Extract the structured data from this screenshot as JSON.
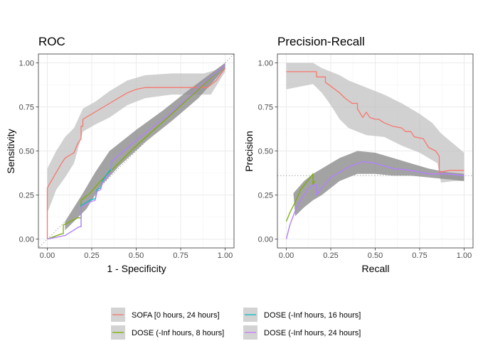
{
  "chart_data": [
    {
      "type": "line",
      "title": "ROC",
      "xlabel": "1 - Specificity",
      "ylabel": "Sensitivity",
      "xlim": [
        0,
        1
      ],
      "ylim": [
        0,
        1
      ],
      "x_ticks": [
        "0.00",
        "0.25",
        "0.50",
        "0.75",
        "1.00"
      ],
      "y_ticks": [
        "0.00",
        "0.25",
        "0.50",
        "0.75",
        "1.00"
      ],
      "grid": true,
      "reference": {
        "kind": "diagonal",
        "from": [
          0,
          0
        ],
        "to": [
          1,
          1
        ],
        "style": "dotted",
        "color": "#a6a6a6"
      },
      "bands": [
        {
          "series": "SOFA [0 hours, 24 hours]",
          "fill": "#bdbdbd",
          "opacity": 0.7,
          "upper": [
            [
              0,
              0.4
            ],
            [
              0.05,
              0.5
            ],
            [
              0.1,
              0.58
            ],
            [
              0.15,
              0.63
            ],
            [
              0.2,
              0.74
            ],
            [
              0.27,
              0.78
            ],
            [
              0.35,
              0.84
            ],
            [
              0.45,
              0.9
            ],
            [
              0.55,
              0.93
            ],
            [
              0.7,
              0.94
            ],
            [
              0.88,
              0.94
            ],
            [
              0.95,
              0.96
            ],
            [
              1.0,
              1.0
            ]
          ],
          "lower": [
            [
              1.0,
              0.95
            ],
            [
              0.92,
              0.82
            ],
            [
              0.88,
              0.82
            ],
            [
              0.7,
              0.82
            ],
            [
              0.55,
              0.8
            ],
            [
              0.45,
              0.76
            ],
            [
              0.35,
              0.69
            ],
            [
              0.27,
              0.65
            ],
            [
              0.2,
              0.61
            ],
            [
              0.15,
              0.43
            ],
            [
              0.1,
              0.35
            ],
            [
              0.05,
              0.28
            ],
            [
              0.02,
              0.2
            ],
            [
              0,
              0.15
            ]
          ]
        },
        {
          "series": "DOSE",
          "fill": "#8c8c8c",
          "opacity": 0.8,
          "upper": [
            [
              0.1,
              0.1
            ],
            [
              0.2,
              0.26
            ],
            [
              0.27,
              0.38
            ],
            [
              0.35,
              0.5
            ],
            [
              0.5,
              0.62
            ],
            [
              0.65,
              0.73
            ],
            [
              0.8,
              0.85
            ],
            [
              0.92,
              0.94
            ],
            [
              1.0,
              1.0
            ]
          ],
          "lower": [
            [
              1.0,
              0.97
            ],
            [
              0.85,
              0.8
            ],
            [
              0.7,
              0.67
            ],
            [
              0.55,
              0.55
            ],
            [
              0.4,
              0.41
            ],
            [
              0.3,
              0.3
            ],
            [
              0.22,
              0.17
            ],
            [
              0.1,
              0.05
            ]
          ]
        }
      ],
      "series": [
        {
          "name": "SOFA [0 hours, 24 hours]",
          "color": "#f8766d",
          "points": [
            [
              0,
              0
            ],
            [
              0,
              0.29
            ],
            [
              0.04,
              0.36
            ],
            [
              0.08,
              0.43
            ],
            [
              0.1,
              0.46
            ],
            [
              0.15,
              0.49
            ],
            [
              0.17,
              0.54
            ],
            [
              0.19,
              0.57
            ],
            [
              0.19,
              0.64
            ],
            [
              0.2,
              0.64
            ],
            [
              0.2,
              0.68
            ],
            [
              0.25,
              0.71
            ],
            [
              0.3,
              0.74
            ],
            [
              0.35,
              0.77
            ],
            [
              0.4,
              0.8
            ],
            [
              0.45,
              0.83
            ],
            [
              0.5,
              0.85
            ],
            [
              0.55,
              0.86
            ],
            [
              0.62,
              0.86
            ],
            [
              0.9,
              0.86
            ],
            [
              0.95,
              0.9
            ],
            [
              1.0,
              0.97
            ]
          ]
        },
        {
          "name": "DOSE (-Inf hours,  8 hours]",
          "color": "#7cae00",
          "points": [
            [
              0,
              0
            ],
            [
              0.08,
              0.03
            ],
            [
              0.09,
              0.03
            ],
            [
              0.09,
              0.08
            ],
            [
              0.17,
              0.12
            ],
            [
              0.19,
              0.12
            ],
            [
              0.19,
              0.22
            ],
            [
              0.24,
              0.26
            ],
            [
              0.3,
              0.33
            ],
            [
              0.35,
              0.38
            ],
            [
              0.5,
              0.53
            ],
            [
              0.7,
              0.71
            ],
            [
              0.85,
              0.85
            ],
            [
              1.0,
              0.99
            ]
          ]
        },
        {
          "name": "DOSE (-Inf hours, 16 hours]",
          "color": "#00bfc4",
          "points": [
            [
              0,
              0
            ],
            [
              0.1,
              0.02
            ],
            [
              0.18,
              0.07
            ],
            [
              0.19,
              0.07
            ],
            [
              0.19,
              0.19
            ],
            [
              0.24,
              0.22
            ],
            [
              0.27,
              0.23
            ],
            [
              0.28,
              0.28
            ],
            [
              0.3,
              0.29
            ],
            [
              0.31,
              0.33
            ],
            [
              0.33,
              0.36
            ],
            [
              0.36,
              0.4
            ],
            [
              0.36,
              0.44
            ],
            [
              0.5,
              0.56
            ],
            [
              0.7,
              0.72
            ],
            [
              0.85,
              0.86
            ],
            [
              1.0,
              0.99
            ]
          ]
        },
        {
          "name": "DOSE (-Inf hours, 24 hours]",
          "color": "#c77cff",
          "points": [
            [
              0,
              0
            ],
            [
              0.1,
              0.02
            ],
            [
              0.18,
              0.07
            ],
            [
              0.19,
              0.07
            ],
            [
              0.19,
              0.18
            ],
            [
              0.24,
              0.21
            ],
            [
              0.27,
              0.22
            ],
            [
              0.28,
              0.27
            ],
            [
              0.3,
              0.28
            ],
            [
              0.31,
              0.32
            ],
            [
              0.33,
              0.35
            ],
            [
              0.36,
              0.38
            ],
            [
              0.36,
              0.44
            ],
            [
              0.5,
              0.56
            ],
            [
              0.7,
              0.72
            ],
            [
              0.85,
              0.86
            ],
            [
              1.0,
              0.99
            ]
          ]
        }
      ]
    },
    {
      "type": "line",
      "title": "Precision-Recall",
      "xlabel": "Recall",
      "ylabel": "Precision",
      "xlim": [
        0,
        1
      ],
      "ylim": [
        0,
        1
      ],
      "x_ticks": [
        "0.00",
        "0.25",
        "0.50",
        "0.75",
        "1.00"
      ],
      "y_ticks": [
        "0.00",
        "0.25",
        "0.50",
        "0.75",
        "1.00"
      ],
      "grid": true,
      "reference": {
        "kind": "horizontal",
        "y": 0.36,
        "style": "dotted",
        "color": "#a6a6a6"
      },
      "bands": [
        {
          "series": "SOFA [0 hours, 24 hours]",
          "fill": "#bdbdbd",
          "opacity": 0.7,
          "upper": [
            [
              0,
              1.0
            ],
            [
              0.15,
              1.0
            ],
            [
              0.2,
              0.97
            ],
            [
              0.25,
              0.95
            ],
            [
              0.3,
              0.93
            ],
            [
              0.35,
              0.9
            ],
            [
              0.45,
              0.86
            ],
            [
              0.55,
              0.82
            ],
            [
              0.65,
              0.77
            ],
            [
              0.75,
              0.71
            ],
            [
              0.82,
              0.66
            ],
            [
              0.87,
              0.6
            ],
            [
              1.0,
              0.49
            ]
          ],
          "lower": [
            [
              1.0,
              0.33
            ],
            [
              0.95,
              0.33
            ],
            [
              0.87,
              0.32
            ],
            [
              0.85,
              0.43
            ],
            [
              0.75,
              0.49
            ],
            [
              0.65,
              0.53
            ],
            [
              0.55,
              0.58
            ],
            [
              0.45,
              0.59
            ],
            [
              0.35,
              0.63
            ],
            [
              0.3,
              0.68
            ],
            [
              0.25,
              0.76
            ],
            [
              0.2,
              0.83
            ],
            [
              0.15,
              0.88
            ],
            [
              0,
              0.85
            ]
          ]
        },
        {
          "series": "DOSE",
          "fill": "#8c8c8c",
          "opacity": 0.8,
          "upper": [
            [
              0.04,
              0.26
            ],
            [
              0.1,
              0.33
            ],
            [
              0.15,
              0.37
            ],
            [
              0.2,
              0.4
            ],
            [
              0.3,
              0.46
            ],
            [
              0.4,
              0.5
            ],
            [
              0.5,
              0.49
            ],
            [
              0.6,
              0.46
            ],
            [
              0.7,
              0.43
            ],
            [
              0.8,
              0.4
            ],
            [
              0.9,
              0.38
            ],
            [
              1.0,
              0.37
            ]
          ],
          "lower": [
            [
              1.0,
              0.33
            ],
            [
              0.9,
              0.34
            ],
            [
              0.8,
              0.35
            ],
            [
              0.7,
              0.36
            ],
            [
              0.6,
              0.36
            ],
            [
              0.5,
              0.37
            ],
            [
              0.4,
              0.37
            ],
            [
              0.3,
              0.33
            ],
            [
              0.2,
              0.25
            ],
            [
              0.15,
              0.22
            ],
            [
              0.1,
              0.18
            ],
            [
              0.05,
              0.13
            ]
          ]
        }
      ],
      "series": [
        {
          "name": "SOFA [0 hours, 24 hours]",
          "color": "#f8766d",
          "points": [
            [
              0,
              0.95
            ],
            [
              0.17,
              0.95
            ],
            [
              0.17,
              0.92
            ],
            [
              0.22,
              0.92
            ],
            [
              0.22,
              0.89
            ],
            [
              0.26,
              0.86
            ],
            [
              0.3,
              0.83
            ],
            [
              0.33,
              0.8
            ],
            [
              0.37,
              0.77
            ],
            [
              0.4,
              0.77
            ],
            [
              0.4,
              0.74
            ],
            [
              0.43,
              0.69
            ],
            [
              0.45,
              0.72
            ],
            [
              0.47,
              0.69
            ],
            [
              0.5,
              0.68
            ],
            [
              0.52,
              0.68
            ],
            [
              0.55,
              0.66
            ],
            [
              0.6,
              0.64
            ],
            [
              0.65,
              0.63
            ],
            [
              0.67,
              0.61
            ],
            [
              0.7,
              0.61
            ],
            [
              0.72,
              0.58
            ],
            [
              0.77,
              0.57
            ],
            [
              0.8,
              0.52
            ],
            [
              0.84,
              0.5
            ],
            [
              0.86,
              0.47
            ],
            [
              0.86,
              0.38
            ],
            [
              0.92,
              0.39
            ],
            [
              1.0,
              0.39
            ]
          ]
        },
        {
          "name": "DOSE (-Inf hours,  8 hours]",
          "color": "#7cae00",
          "points": [
            [
              0,
              0.1
            ],
            [
              0.02,
              0.15
            ],
            [
              0.05,
              0.21
            ],
            [
              0.08,
              0.28
            ],
            [
              0.12,
              0.33
            ],
            [
              0.15,
              0.37
            ],
            [
              0.15,
              0.31
            ],
            [
              0.16,
              0.33
            ]
          ]
        },
        {
          "name": "DOSE (-Inf hours, 16 hours]",
          "color": "#00bfc4",
          "points": [
            [
              0,
              0.0
            ],
            [
              0.02,
              0.08
            ],
            [
              0.05,
              0.16
            ],
            [
              0.08,
              0.22
            ],
            [
              0.12,
              0.28
            ],
            [
              0.14,
              0.3
            ],
            [
              0.17,
              0.31
            ],
            [
              0.17,
              0.25
            ],
            [
              0.2,
              0.29
            ],
            [
              0.25,
              0.35
            ],
            [
              0.3,
              0.38
            ],
            [
              0.35,
              0.41
            ],
            [
              0.43,
              0.44
            ],
            [
              0.5,
              0.43
            ],
            [
              0.6,
              0.4
            ],
            [
              0.7,
              0.39
            ],
            [
              0.8,
              0.37
            ],
            [
              0.9,
              0.37
            ],
            [
              1.0,
              0.36
            ]
          ]
        },
        {
          "name": "DOSE (-Inf hours, 24 hours]",
          "color": "#c77cff",
          "points": [
            [
              0,
              0.0
            ],
            [
              0.02,
              0.08
            ],
            [
              0.05,
              0.16
            ],
            [
              0.08,
              0.22
            ],
            [
              0.12,
              0.28
            ],
            [
              0.14,
              0.3
            ],
            [
              0.17,
              0.31
            ],
            [
              0.17,
              0.25
            ],
            [
              0.2,
              0.29
            ],
            [
              0.25,
              0.35
            ],
            [
              0.3,
              0.38
            ],
            [
              0.35,
              0.41
            ],
            [
              0.43,
              0.44
            ],
            [
              0.5,
              0.43
            ],
            [
              0.6,
              0.4
            ],
            [
              0.7,
              0.39
            ],
            [
              0.8,
              0.37
            ],
            [
              0.9,
              0.37
            ],
            [
              1.0,
              0.36
            ]
          ]
        }
      ]
    }
  ],
  "legend": {
    "placement": "bottom",
    "items": [
      {
        "label": "SOFA [0 hours, 24 hours]",
        "color": "#f8766d"
      },
      {
        "label": "DOSE (-Inf hours,  8 hours]",
        "color": "#7cae00"
      },
      {
        "label": "DOSE (-Inf hours, 16 hours]",
        "color": "#00bfc4"
      },
      {
        "label": "DOSE (-Inf hours, 24 hours]",
        "color": "#c77cff"
      }
    ]
  }
}
